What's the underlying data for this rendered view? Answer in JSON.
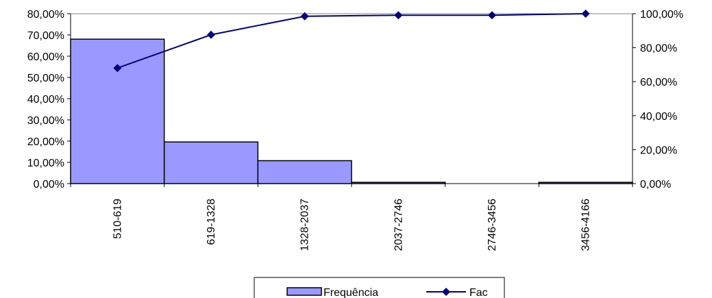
{
  "chart_data": {
    "type": "bar+line",
    "categories": [
      "510-619",
      "619-1328",
      "1328-2037",
      "2037-2746",
      "2746-3456",
      "3456-4166"
    ],
    "series": [
      {
        "name": "Frequência",
        "type": "bar",
        "axis": "left",
        "values": [
          68.0,
          19.6,
          10.8,
          0.6,
          0.0,
          0.6
        ]
      },
      {
        "name": "Fac",
        "type": "line",
        "axis": "right",
        "values": [
          68.0,
          87.6,
          98.5,
          99.1,
          99.1,
          100.0
        ]
      }
    ],
    "y_left": {
      "min": 0,
      "max": 80,
      "step": 10,
      "tick_labels": [
        "0,00%",
        "10,00%",
        "20,00%",
        "30,00%",
        "40,00%",
        "50,00%",
        "60,00%",
        "70,00%",
        "80,00%"
      ]
    },
    "y_right": {
      "min": 0,
      "max": 100,
      "step": 20,
      "tick_labels": [
        "0,00%",
        "20,00%",
        "40,00%",
        "60,00%",
        "80,00%",
        "100,00%"
      ]
    },
    "colors": {
      "bar_fill": "#9999ff",
      "bar_stroke": "#000000",
      "line": "#000080",
      "axis": "#000000",
      "top_border": "#808080"
    },
    "legend": {
      "position": "bottom",
      "items": [
        "Frequência",
        "Fac"
      ]
    },
    "grid": false
  }
}
